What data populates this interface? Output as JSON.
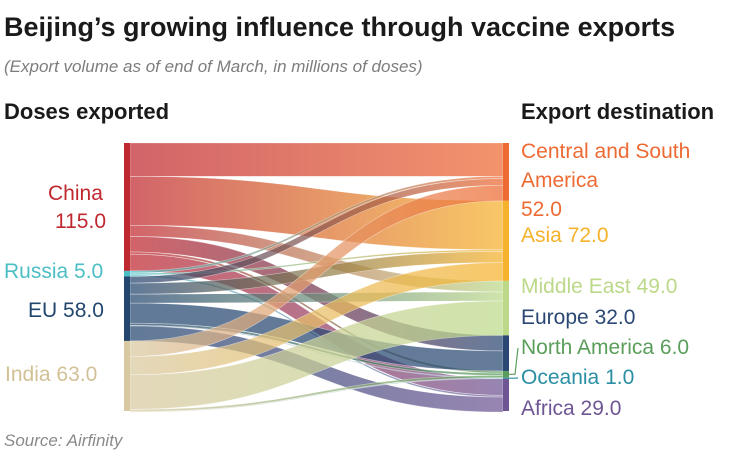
{
  "title": "Beijing’s growing influence through vaccine exports",
  "subtitle": "(Export volume as of end of March, in millions of doses)",
  "left_header": "Doses exported",
  "right_header": "Export destination",
  "source": "Source: Airfinity",
  "sources": [
    {
      "key": "china",
      "name": "China",
      "value": 115.0,
      "value_text": "115.0",
      "color": "#c0282f"
    },
    {
      "key": "russia",
      "name": "Russia",
      "value": 5.0,
      "value_text": "5.0",
      "color": "#4cbfc4"
    },
    {
      "key": "eu",
      "name": "EU",
      "value": 58.0,
      "value_text": "58.0",
      "color": "#23466f"
    },
    {
      "key": "india",
      "name": "India",
      "value": 63.0,
      "value_text": "63.0",
      "color": "#d9c9a0"
    }
  ],
  "destinations": [
    {
      "key": "csa",
      "name": "Central and South America",
      "value": 52.0,
      "value_text": "52.0",
      "color": "#ee6a33"
    },
    {
      "key": "asia",
      "name": "Asia",
      "value": 72.0,
      "value_text": "72.0",
      "color": "#f6b22c"
    },
    {
      "key": "me",
      "name": "Middle East",
      "value": 49.0,
      "value_text": "49.0",
      "color": "#bcd98a"
    },
    {
      "key": "europe",
      "name": "Europe",
      "value": 32.0,
      "value_text": "32.0",
      "color": "#2a4873"
    },
    {
      "key": "na",
      "name": "North America",
      "value": 6.0,
      "value_text": "6.0",
      "color": "#5b9e5b"
    },
    {
      "key": "oceania",
      "name": "Oceania",
      "value": 1.0,
      "value_text": "1.0",
      "color": "#2a8fa2"
    },
    {
      "key": "africa",
      "name": "Africa",
      "value": 29.0,
      "value_text": "29.0",
      "color": "#6e5694"
    }
  ],
  "flows": [
    {
      "from": "china",
      "to": "csa",
      "value": 30
    },
    {
      "from": "china",
      "to": "asia",
      "value": 44
    },
    {
      "from": "china",
      "to": "me",
      "value": 10
    },
    {
      "from": "china",
      "to": "europe",
      "value": 14
    },
    {
      "from": "china",
      "to": "na",
      "value": 2
    },
    {
      "from": "china",
      "to": "africa",
      "value": 15
    },
    {
      "from": "russia",
      "to": "csa",
      "value": 2
    },
    {
      "from": "russia",
      "to": "asia",
      "value": 1.5
    },
    {
      "from": "russia",
      "to": "africa",
      "value": 1.5
    },
    {
      "from": "eu",
      "to": "csa",
      "value": 6
    },
    {
      "from": "eu",
      "to": "asia",
      "value": 10
    },
    {
      "from": "eu",
      "to": "me",
      "value": 8
    },
    {
      "from": "eu",
      "to": "europe",
      "value": 18
    },
    {
      "from": "eu",
      "to": "na",
      "value": 2
    },
    {
      "from": "eu",
      "to": "oceania",
      "value": 0.5
    },
    {
      "from": "eu",
      "to": "africa",
      "value": 13.5
    },
    {
      "from": "india",
      "to": "csa",
      "value": 14
    },
    {
      "from": "india",
      "to": "asia",
      "value": 16.5
    },
    {
      "from": "india",
      "to": "me",
      "value": 31
    },
    {
      "from": "india",
      "to": "na",
      "value": 2
    },
    {
      "from": "india",
      "to": "oceania",
      "value": 0.5
    },
    {
      "from": "india",
      "to": "africa",
      "value": -1
    }
  ]
}
